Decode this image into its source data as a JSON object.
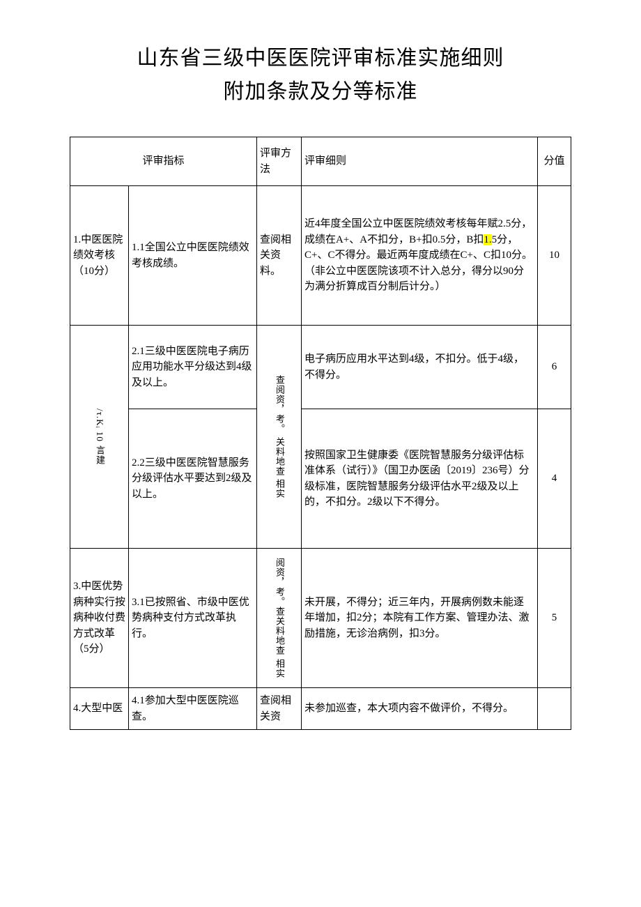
{
  "title": {
    "line1": "山东省三级中医医院评审标准实施细则",
    "line2": "附加条款及分等标准"
  },
  "headers": {
    "indicator": "评审指标",
    "method": "评审方法",
    "rule": "评审细则",
    "score": "分值"
  },
  "rows": [
    {
      "category": "1.中医医院绩效考核（10分）",
      "item": "1.1全国公立中医医院绩效考核成绩。",
      "method": "查阅相关资料。",
      "rule_pre": "近4年度全国公立中医医院绩效考核每年赋2.5分，成绩在A+、A不扣分，B+扣0.5分，B扣",
      "rule_hl": "1.",
      "rule_post": "5分，C+、C不得分。最近两年度成绩在C+、C扣10分。（非公立中医医院该项不计入总分，得分以90分为满分折算成百分制后计分。）",
      "score": "10"
    },
    {
      "category_vert_a": "/τ.Kᵢ 10",
      "category_vert_b": "言建",
      "item": "2.1三级中医医院电子病历应用功能水平分级达到4级及以上。",
      "method_vert_a": "查阅资，考。",
      "method_vert_b": "关料地查",
      "method_vert_c": "相实",
      "rule": "电子病历应用水平达到4级，不扣分。低于4级，不得分。",
      "score": "6"
    },
    {
      "item": "2.2三级中医医院智慧服务分级评估水平要达到2级及以上。",
      "rule": "按照国家卫生健康委《医院智慧服务分级评估标准体系（试行）》（国卫办医函〔2019〕236号）分级标准，医院智慧服务分级评估水平2级及以上的，不扣分。2级以下不得分。",
      "score": "4"
    },
    {
      "category": "3.中医优势病种实行按病种收付费方式改革（5分）",
      "item": "3.1已按照省、市级中医优势病种支付方式改革执行。",
      "method_vert_a": "阅资，考。查关料地查",
      "method_vert_b": "相实",
      "rule": "未开展，不得分；近三年内，开展病例数未能逐年增加，扣2分；本院有工作方案、管理办法、激励措施，无诊治病例，扣3分。",
      "score": "5"
    },
    {
      "category": "4.大型中医",
      "item": "4.1参加大型中医医院巡查。",
      "method": "查阅相关资",
      "rule": "未参加巡查，本大项内容不做评价，不得分。",
      "score": ""
    }
  ]
}
